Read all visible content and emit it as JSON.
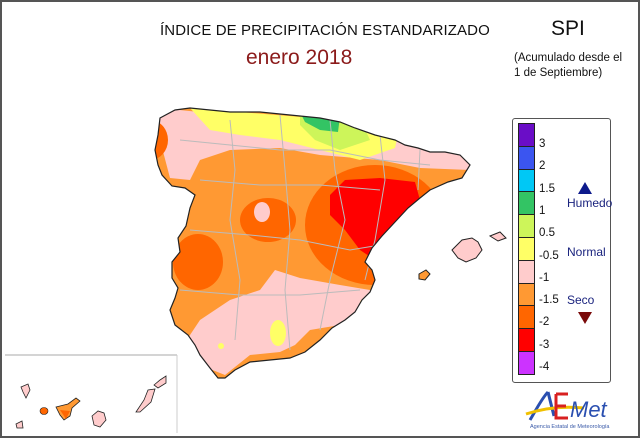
{
  "header": {
    "title": "ÍNDICE DE PRECIPITACIÓN ESTANDARIZADO",
    "period": "enero 2018",
    "index_name": "SPI",
    "note_line1": "(Acumulado desde el",
    "note_line2": "1 de Septiembre)"
  },
  "legend": {
    "swatches": [
      {
        "color": "#6a0dc7"
      },
      {
        "color": "#3b55f0"
      },
      {
        "color": "#00c8f5"
      },
      {
        "color": "#33c464"
      },
      {
        "color": "#cdf55a"
      },
      {
        "color": "#ffff66"
      },
      {
        "color": "#ffcccc"
      },
      {
        "color": "#ff9933"
      },
      {
        "color": "#ff6600"
      },
      {
        "color": "#ff0000"
      },
      {
        "color": "#cc33ff"
      }
    ],
    "ticks": [
      "3",
      "2",
      "1.5",
      "1",
      "0.5",
      "-0.5",
      "-1",
      "-1.5",
      "-2",
      "-3",
      "-4"
    ],
    "humid_label": "Humedo",
    "normal_label": "Normal",
    "dry_label": "Seco",
    "humid_icon": "triangle-up-icon",
    "dry_icon": "triangle-down-icon"
  },
  "map": {
    "region": "Spain",
    "colors": {
      "very_dry": "#ff0000",
      "dry": "#ff6600",
      "moderately_dry": "#ff9933",
      "normal_low": "#ffcccc",
      "normal": "#ffff66",
      "humid": "#cdf55a",
      "very_humid": "#33c464",
      "borders": "#bbbbbb",
      "coast": "#222222"
    }
  },
  "logo": {
    "text": "AEmet",
    "subtitle": "Agencia Estatal de Meteorología"
  }
}
